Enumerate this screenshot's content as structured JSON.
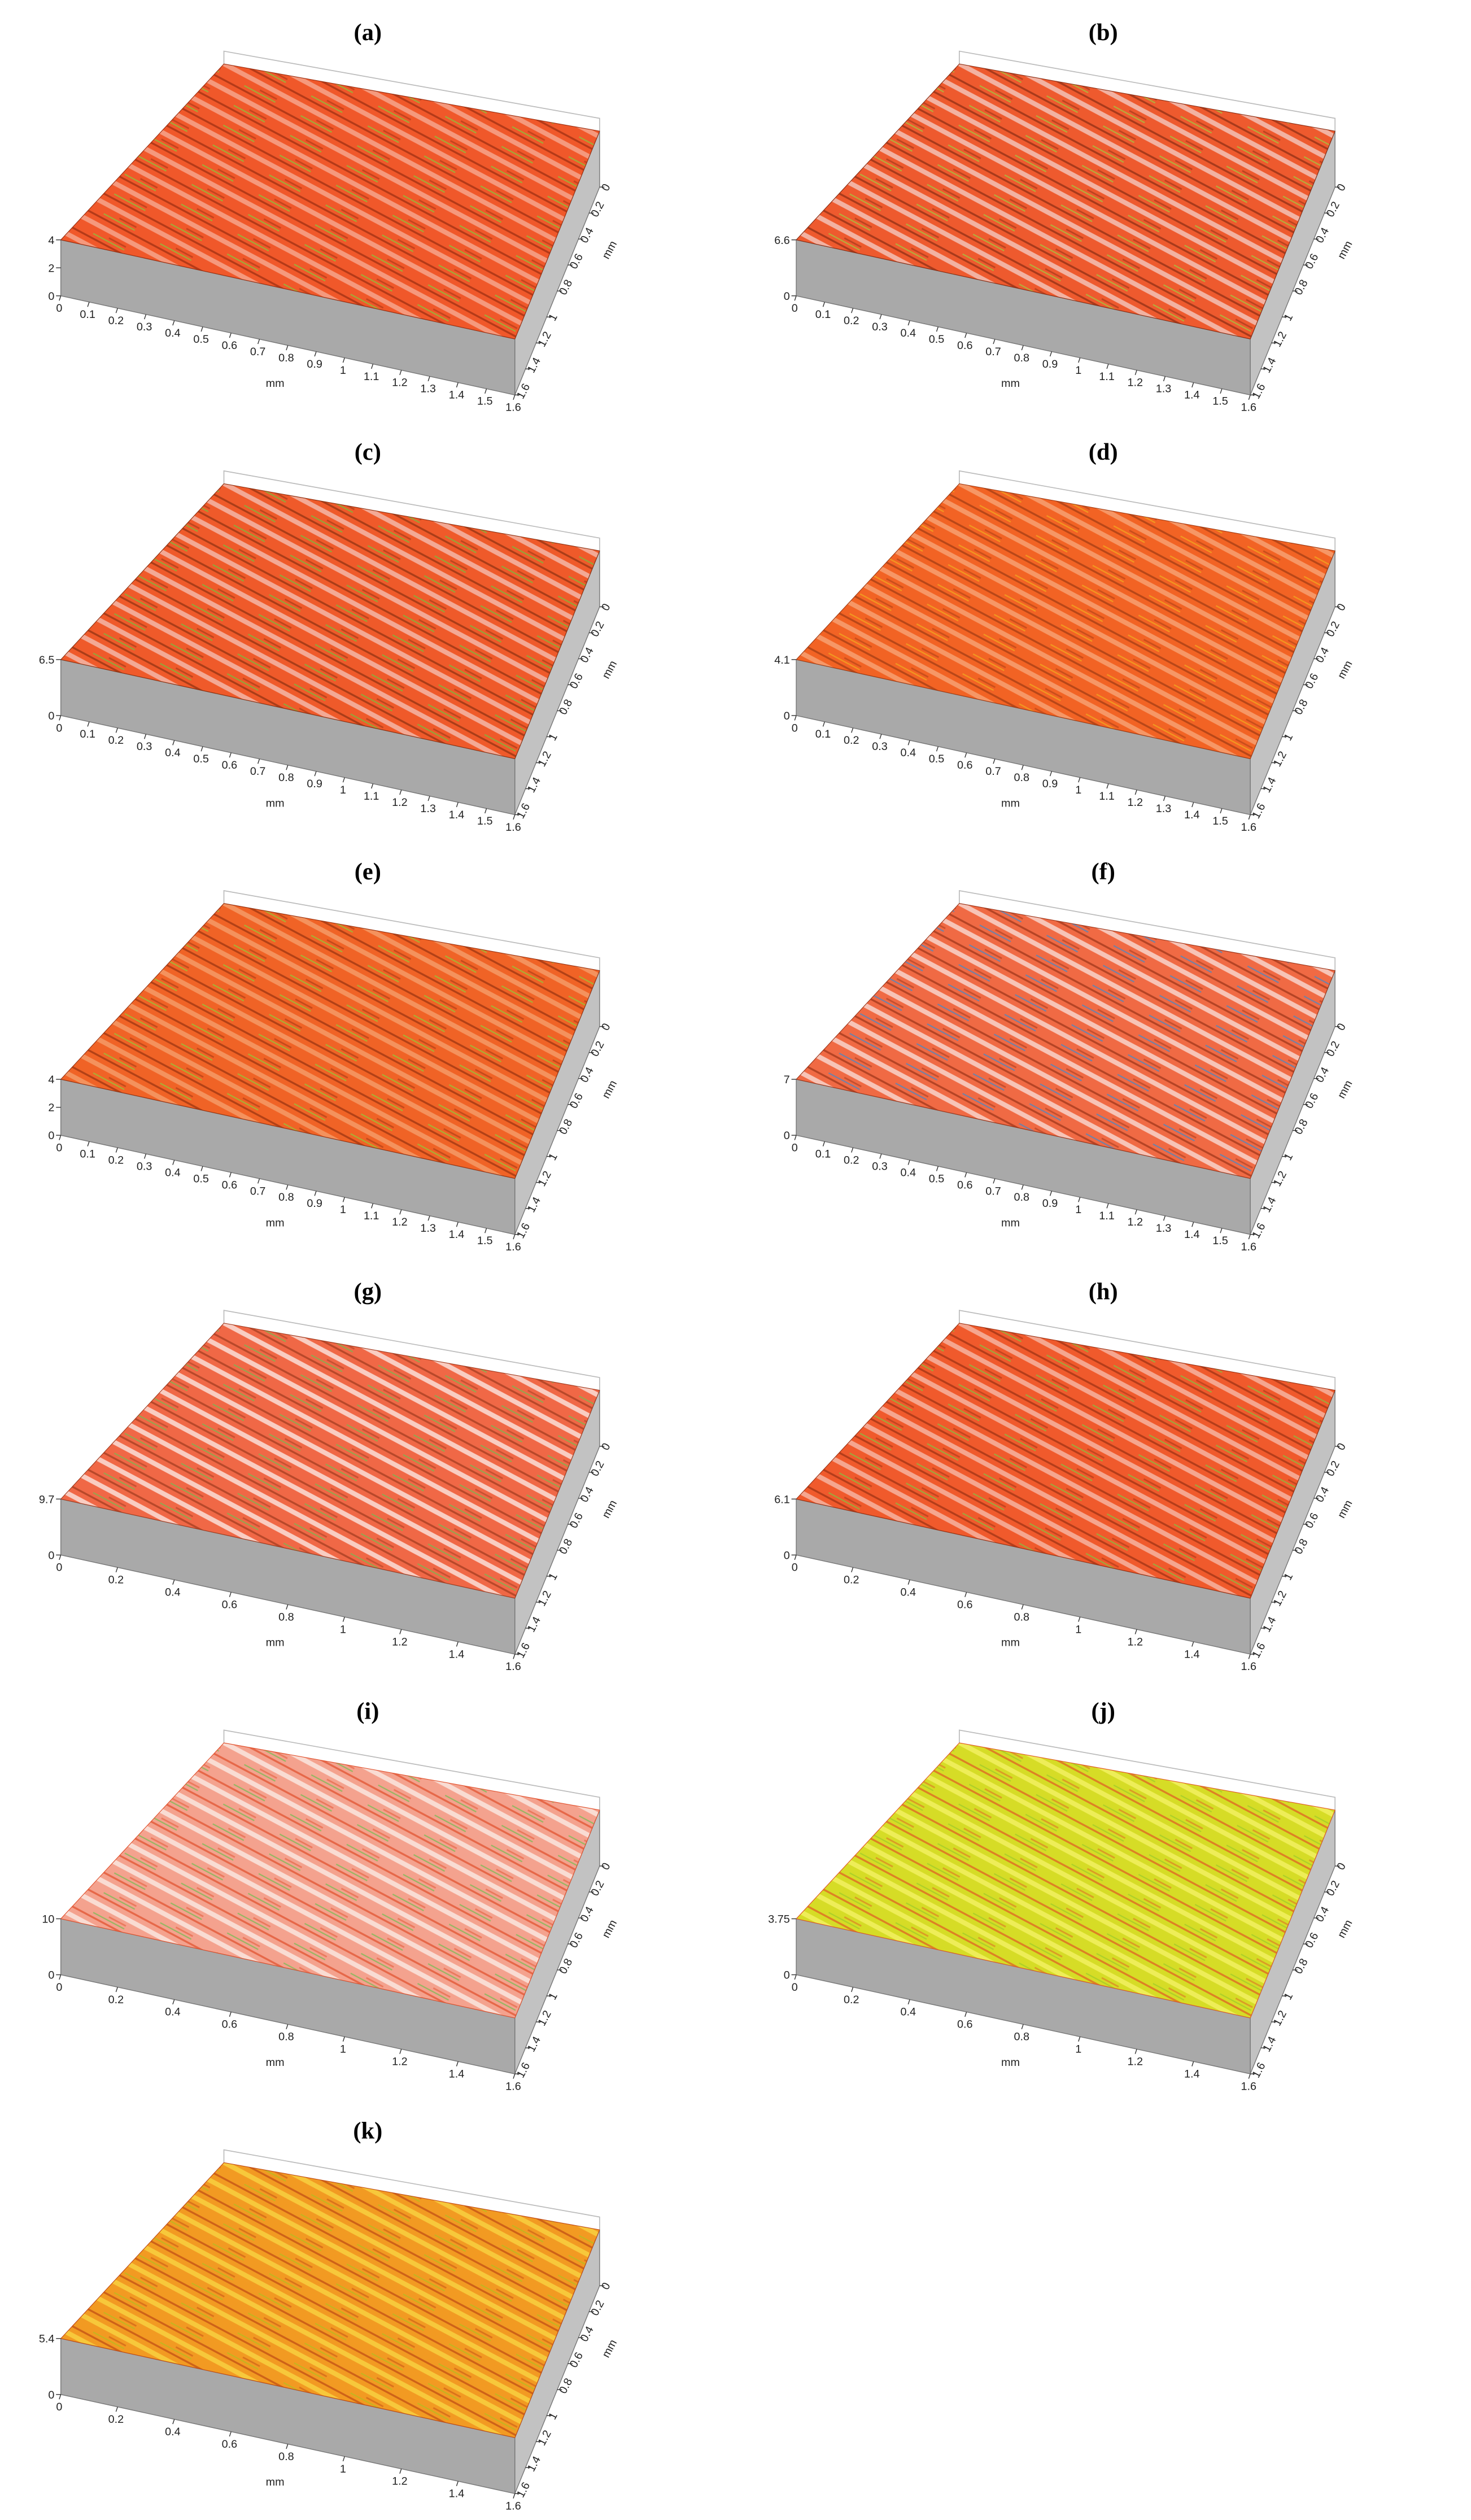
{
  "panels": [
    {
      "label": "(a)",
      "z_ticks": [
        4,
        2,
        0
      ],
      "x_ticks": [
        0,
        0.1,
        0.2,
        0.3,
        0.4,
        0.5,
        0.6,
        0.7,
        0.8,
        0.9,
        1,
        1.1,
        1.2,
        1.3,
        1.4,
        1.5,
        1.6
      ],
      "x_unit": "mm",
      "y_ticks": [
        0,
        0.2,
        0.4,
        0.6,
        0.8,
        1,
        1.2,
        1.4,
        1.6
      ],
      "y_unit": "mm"
    },
    {
      "label": "(b)",
      "z_ticks": [
        6.6,
        0
      ],
      "x_ticks": [
        0,
        0.1,
        0.2,
        0.3,
        0.4,
        0.5,
        0.6,
        0.7,
        0.8,
        0.9,
        1,
        1.1,
        1.2,
        1.3,
        1.4,
        1.5,
        1.6
      ],
      "x_unit": "mm",
      "y_ticks": [
        0,
        0.2,
        0.4,
        0.6,
        0.8,
        1,
        1.2,
        1.4,
        1.6
      ],
      "y_unit": "mm"
    },
    {
      "label": "(c)",
      "z_ticks": [
        6.5,
        0
      ],
      "x_ticks": [
        0,
        0.1,
        0.2,
        0.3,
        0.4,
        0.5,
        0.6,
        0.7,
        0.8,
        0.9,
        1,
        1.1,
        1.2,
        1.3,
        1.4,
        1.5,
        1.6
      ],
      "x_unit": "mm",
      "y_ticks": [
        0,
        0.2,
        0.4,
        0.6,
        0.8,
        1,
        1.2,
        1.4,
        1.6
      ],
      "y_unit": "mm"
    },
    {
      "label": "(d)",
      "z_ticks": [
        4.1,
        0
      ],
      "x_ticks": [
        0,
        0.1,
        0.2,
        0.3,
        0.4,
        0.5,
        0.6,
        0.7,
        0.8,
        0.9,
        1,
        1.1,
        1.2,
        1.3,
        1.4,
        1.5,
        1.6
      ],
      "x_unit": "mm",
      "y_ticks": [
        0,
        0.2,
        0.4,
        0.6,
        0.8,
        1,
        1.2,
        1.4,
        1.6
      ],
      "y_unit": "mm"
    },
    {
      "label": "(e)",
      "z_ticks": [
        4,
        2,
        0
      ],
      "x_ticks": [
        0,
        0.1,
        0.2,
        0.3,
        0.4,
        0.5,
        0.6,
        0.7,
        0.8,
        0.9,
        1,
        1.1,
        1.2,
        1.3,
        1.4,
        1.5,
        1.6
      ],
      "x_unit": "mm",
      "y_ticks": [
        0,
        0.2,
        0.4,
        0.6,
        0.8,
        1,
        1.2,
        1.4,
        1.6
      ],
      "y_unit": "mm"
    },
    {
      "label": "(f)",
      "z_ticks": [
        7,
        0
      ],
      "x_ticks": [
        0,
        0.1,
        0.2,
        0.3,
        0.4,
        0.5,
        0.6,
        0.7,
        0.8,
        0.9,
        1,
        1.1,
        1.2,
        1.3,
        1.4,
        1.5,
        1.6
      ],
      "x_unit": "mm",
      "y_ticks": [
        0,
        0.2,
        0.4,
        0.6,
        0.8,
        1,
        1.2,
        1.4,
        1.6
      ],
      "y_unit": "mm"
    },
    {
      "label": "(g)",
      "z_ticks": [
        9.7,
        0
      ],
      "x_ticks": [
        0,
        0.2,
        0.4,
        0.6,
        0.8,
        1,
        1.2,
        1.4,
        1.6
      ],
      "x_unit": "mm",
      "y_ticks": [
        0,
        0.2,
        0.4,
        0.6,
        0.8,
        1,
        1.2,
        1.4,
        1.6
      ],
      "y_unit": "mm"
    },
    {
      "label": "(h)",
      "z_ticks": [
        6.1,
        0
      ],
      "x_ticks": [
        0,
        0.2,
        0.4,
        0.6,
        0.8,
        1,
        1.2,
        1.4,
        1.6
      ],
      "x_unit": "mm",
      "y_ticks": [
        0,
        0.2,
        0.4,
        0.6,
        0.8,
        1,
        1.2,
        1.4,
        1.6
      ],
      "y_unit": "mm"
    },
    {
      "label": "(i)",
      "z_ticks": [
        10,
        0
      ],
      "x_ticks": [
        0,
        0.2,
        0.4,
        0.6,
        0.8,
        1,
        1.2,
        1.4,
        1.6
      ],
      "x_unit": "mm",
      "y_ticks": [
        0,
        0.2,
        0.4,
        0.6,
        0.8,
        1,
        1.2,
        1.4,
        1.6
      ],
      "y_unit": "mm"
    },
    {
      "label": "(j)",
      "z_ticks": [
        3.75,
        0
      ],
      "x_ticks": [
        0,
        0.2,
        0.4,
        0.6,
        0.8,
        1,
        1.2,
        1.4,
        1.6
      ],
      "x_unit": "mm",
      "y_ticks": [
        0,
        0.2,
        0.4,
        0.6,
        0.8,
        1,
        1.2,
        1.4,
        1.6
      ],
      "y_unit": "mm"
    },
    {
      "label": "(k)",
      "z_ticks": [
        5.4,
        0
      ],
      "x_ticks": [
        0,
        0.2,
        0.4,
        0.6,
        0.8,
        1,
        1.2,
        1.4,
        1.6
      ],
      "x_unit": "mm",
      "y_ticks": [
        0,
        0.2,
        0.4,
        0.6,
        0.8,
        1,
        1.2,
        1.4,
        1.6
      ],
      "y_unit": "mm"
    }
  ]
}
